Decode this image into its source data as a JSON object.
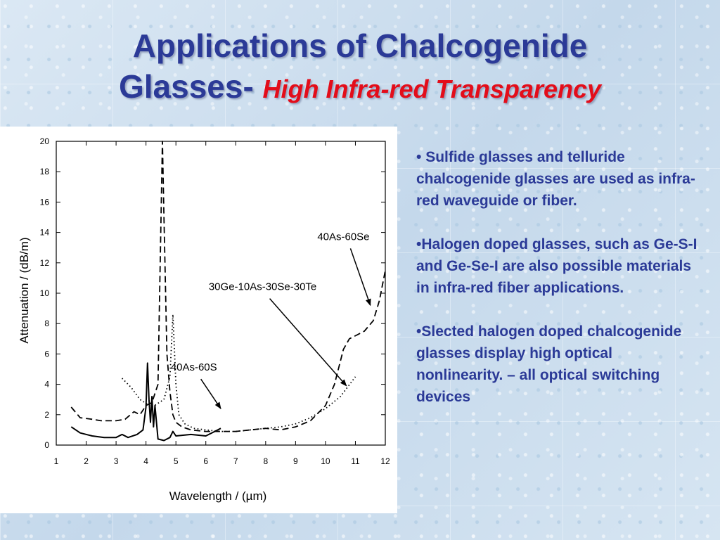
{
  "slide": {
    "title_line1": "Applications of Chalcogenide",
    "title_line2_main": "Glasses-",
    "title_line2_sub": "High Infra-red Transparency"
  },
  "bullets": [
    {
      "symbol": "• ",
      "text": "Sulfide glasses and telluride chalcogenide glasses are used as infra-red waveguide or fiber."
    },
    {
      "symbol": "•",
      "text": "Halogen doped glasses, such as Ge-S-I and Ge-Se-I are also possible materials in infra-red fiber applications."
    },
    {
      "symbol": "•",
      "text": "Slected halogen doped chalcogenide glasses display high optical nonlinearity. – all optical switching devices"
    }
  ],
  "colors": {
    "title": "#2b3a97",
    "subtitle": "#e30d1a",
    "bullets": "#2b3a97"
  },
  "chart_data": {
    "type": "line",
    "xlabel": "Wavelength / (µm)",
    "ylabel": "Attenuation / (dB/m)",
    "xlim": [
      1,
      12
    ],
    "ylim": [
      0,
      20
    ],
    "xticks": [
      1,
      2,
      3,
      4,
      5,
      6,
      7,
      8,
      9,
      10,
      11,
      12
    ],
    "yticks": [
      0,
      2,
      4,
      6,
      8,
      10,
      12,
      14,
      16,
      18,
      20
    ],
    "series": [
      {
        "name": "40As-60S",
        "style": "solid",
        "x": [
          1.5,
          1.8,
          2.2,
          2.6,
          3.0,
          3.2,
          3.4,
          3.7,
          3.9,
          4.0,
          4.05,
          4.1,
          4.15,
          4.2,
          4.25,
          4.3,
          4.4,
          4.6,
          4.8,
          4.9,
          5.0,
          5.5,
          6.0,
          6.3,
          6.5
        ],
        "values": [
          1.2,
          0.8,
          0.6,
          0.5,
          0.5,
          0.7,
          0.5,
          0.7,
          1.0,
          2.5,
          5.4,
          3.0,
          1.5,
          3.2,
          1.2,
          2.6,
          0.4,
          0.3,
          0.5,
          0.9,
          0.6,
          0.7,
          0.6,
          0.9,
          1.1
        ]
      },
      {
        "name": "30Ge-10As-30Se-30Te",
        "style": "dotted",
        "x": [
          3.2,
          3.5,
          3.8,
          4.2,
          4.6,
          4.8,
          4.9,
          5.0,
          5.1,
          5.3,
          5.6,
          6.0,
          6.5,
          7.0,
          7.5,
          8.0,
          8.5,
          9.0,
          9.5,
          10.0,
          10.5,
          11.0
        ],
        "values": [
          4.4,
          3.8,
          3.0,
          2.5,
          3.0,
          4.5,
          8.6,
          4.0,
          2.0,
          1.4,
          1.1,
          1.0,
          0.9,
          0.9,
          1.0,
          1.1,
          1.2,
          1.4,
          1.8,
          2.4,
          3.2,
          4.5
        ]
      },
      {
        "name": "40As-60Se",
        "style": "dashed",
        "x": [
          1.5,
          1.8,
          2.2,
          2.5,
          3.0,
          3.3,
          3.6,
          3.8,
          4.0,
          4.2,
          4.4,
          4.55,
          4.6,
          4.7,
          4.8,
          4.9,
          5.0,
          5.2,
          5.5,
          6.0,
          6.5,
          7.0,
          7.5,
          8.0,
          8.5,
          9.0,
          9.5,
          10.0,
          10.3,
          10.6,
          10.8,
          11.0,
          11.3,
          11.6,
          11.8,
          12.0
        ],
        "values": [
          2.5,
          1.8,
          1.7,
          1.6,
          1.6,
          1.7,
          2.2,
          2.0,
          2.6,
          2.8,
          4.0,
          20.0,
          15.0,
          6.0,
          3.5,
          2.0,
          1.5,
          1.2,
          1.0,
          0.9,
          0.9,
          0.9,
          1.0,
          1.1,
          1.0,
          1.2,
          1.6,
          2.6,
          4.0,
          6.3,
          7.0,
          7.2,
          7.5,
          8.2,
          9.5,
          11.5
        ]
      }
    ],
    "annotations": [
      {
        "text": "40As-60Se",
        "x": 10.6,
        "y": 13.5,
        "arrow_to": [
          11.5,
          9.2
        ]
      },
      {
        "text": "30Ge-10As-30Se-30Te",
        "x": 7.9,
        "y": 10.2,
        "arrow_to": [
          10.7,
          3.9
        ]
      },
      {
        "text": "40As-60S",
        "x": 5.6,
        "y": 4.9,
        "arrow_to": [
          6.5,
          2.4
        ]
      }
    ]
  }
}
